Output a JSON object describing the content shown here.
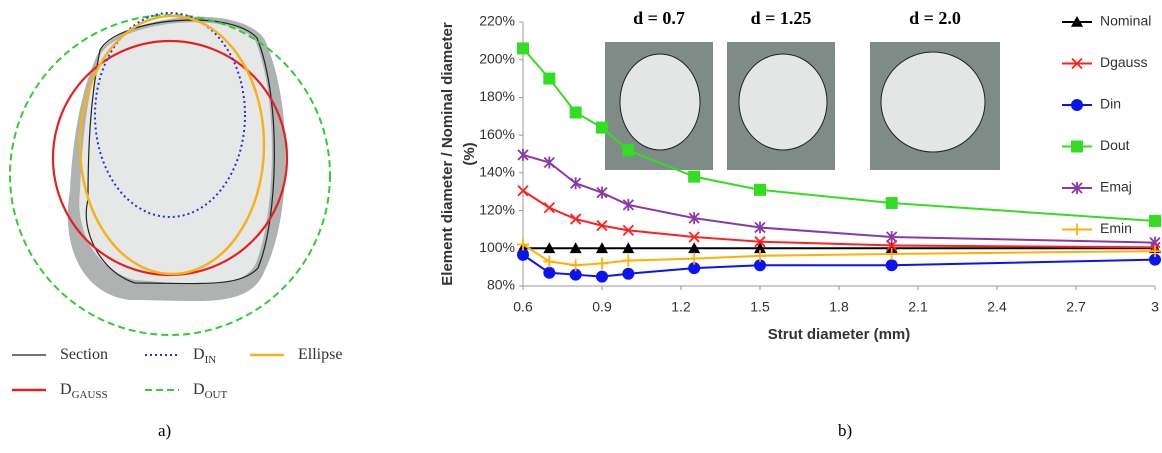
{
  "panel_a": {
    "legend": [
      {
        "label": "Section"
      },
      {
        "label": "D",
        "subscript": "IN"
      },
      {
        "label": "Ellipse"
      },
      {
        "label": "D",
        "subscript": "GAUSS"
      },
      {
        "label": "D",
        "subscript": "OUT"
      }
    ],
    "panel_label": "a)"
  },
  "chart_data": {
    "type": "line",
    "panel_label": "b)",
    "xlabel": "Strut diameter (mm)",
    "ylabel": [
      "Element diameter / Nominal diameter",
      "(%)"
    ],
    "x": [
      0.6,
      0.7,
      0.8,
      0.9,
      1.0,
      1.25,
      1.5,
      2.0,
      3.0
    ],
    "xlim": [
      0.6,
      3
    ],
    "xticks": [
      0.6,
      0.9,
      1.2,
      1.5,
      1.8,
      2.1,
      2.4,
      2.7,
      3
    ],
    "ylim": [
      80,
      220
    ],
    "yticks": [
      {
        "value": 80,
        "label": "80%"
      },
      {
        "value": 100,
        "label": "100%"
      },
      {
        "value": 120,
        "label": "120%"
      },
      {
        "value": 140,
        "label": "140%"
      },
      {
        "value": 160,
        "label": "160%"
      },
      {
        "value": 180,
        "label": "180%"
      },
      {
        "value": 200,
        "label": "200%"
      },
      {
        "value": 220,
        "label": "220%"
      }
    ],
    "legend": "right",
    "insets": [
      "d = 0.7",
      "d = 1.25",
      "d = 2.0"
    ],
    "series": [
      {
        "name": "Nominal",
        "color": "#000000",
        "marker": "triangle",
        "values": [
          100,
          100,
          100,
          100,
          100,
          100,
          100,
          100,
          100
        ]
      },
      {
        "name": "Dgauss",
        "color": "#ff2020",
        "marker": "x",
        "values": [
          130.5,
          121.5,
          115.5,
          112,
          109.5,
          106,
          103.5,
          101.5,
          100.5
        ]
      },
      {
        "name": "Din",
        "color": "#0a14f0",
        "marker": "circle",
        "values": [
          96.5,
          87,
          86,
          85,
          86.5,
          89.5,
          91,
          91,
          94
        ]
      },
      {
        "name": "Dout",
        "color": "#33dd22",
        "marker": "square",
        "values": [
          206,
          190,
          172,
          164,
          152,
          138,
          131,
          124,
          114.5
        ]
      },
      {
        "name": "Emaj",
        "color": "#8a3aa8",
        "marker": "asterisk",
        "values": [
          149.5,
          145.5,
          134.5,
          129.5,
          123,
          116,
          111,
          106,
          103
        ]
      },
      {
        "name": "Emin",
        "color": "#ffb000",
        "marker": "plus",
        "values": [
          102,
          93,
          91,
          92,
          93.5,
          94.5,
          96,
          97,
          98.5
        ]
      }
    ]
  }
}
